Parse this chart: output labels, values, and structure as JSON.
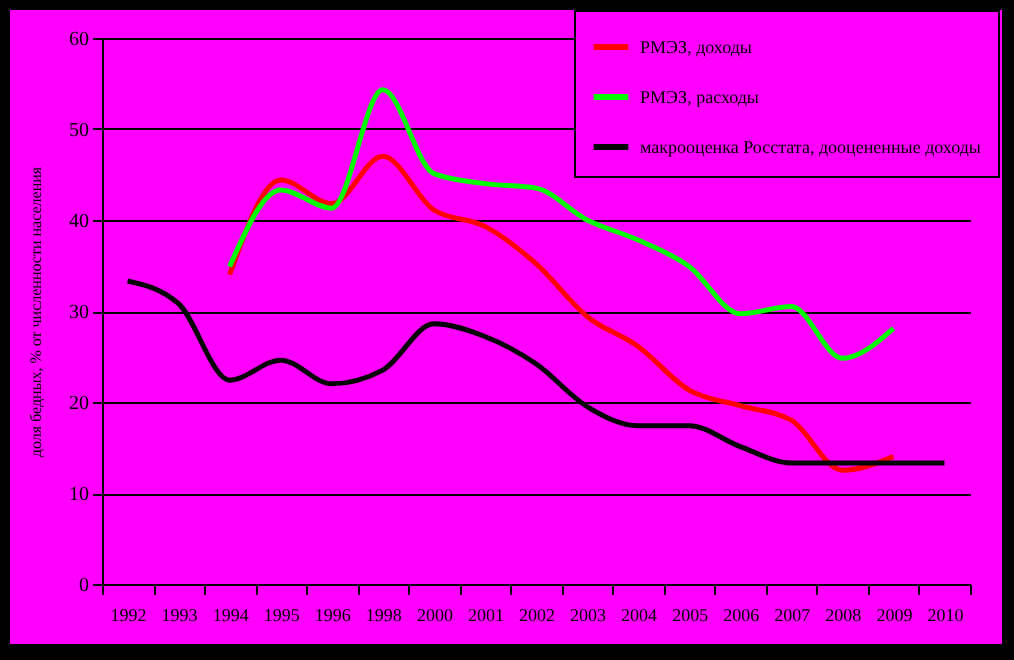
{
  "chart_data": {
    "type": "line",
    "ylabel": "доля бедных, % от численности населения",
    "categories": [
      "1992",
      "1993",
      "1994",
      "1995",
      "1996",
      "1998",
      "2000",
      "2001",
      "2002",
      "2003",
      "2004",
      "2005",
      "2006",
      "2007",
      "2008",
      "2009",
      "2010"
    ],
    "series": [
      {
        "name": "РМЭЗ, доходы",
        "color": "#ff0000",
        "values": [
          null,
          null,
          34.0,
          44.4,
          41.8,
          47.0,
          41.1,
          39.3,
          35.2,
          29.4,
          26.1,
          21.3,
          19.6,
          18.0,
          12.5,
          14.0,
          null
        ]
      },
      {
        "name": "РМЭЗ, расходы",
        "color": "#00ff00",
        "values": [
          null,
          null,
          34.9,
          43.3,
          41.3,
          54.3,
          45.1,
          44.0,
          43.5,
          40.0,
          37.8,
          34.9,
          29.7,
          30.5,
          24.8,
          28.1,
          null
        ]
      },
      {
        "name": "макрооценка Росстата, дооцененные доходы",
        "color": "#000000",
        "values": [
          33.3,
          30.8,
          22.4,
          24.6,
          22.0,
          23.5,
          28.6,
          27.2,
          24.2,
          19.5,
          17.4,
          17.4,
          15.1,
          13.3,
          13.3,
          13.3,
          13.3
        ]
      }
    ],
    "ylim": [
      0,
      60
    ],
    "yticks": [
      0,
      10,
      20,
      30,
      40,
      50,
      60
    ],
    "grid": "y",
    "legend": "top right",
    "line_style": "solid",
    "marker": "none"
  }
}
